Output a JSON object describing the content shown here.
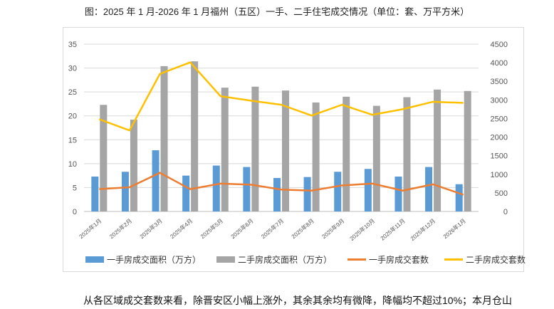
{
  "title": "图：2025 年 1 月-2026 年 1 月福州（五区）一手、二手住宅成交情况（单位：套、万平方米）",
  "footer_text": "从各区域成交套数来看，除晋安区小幅上涨外，其余其余均有微降，降幅均不超过10%；本月仓山",
  "colors": {
    "primary_area": "#5b9bd5",
    "secondary_area": "#a5a5a5",
    "primary_units": "#ed7d31",
    "secondary_units": "#ffc000"
  },
  "chart_data": {
    "type": "bar",
    "categories": [
      "2025年1月",
      "2025年2月",
      "2025年3月",
      "2025年4月",
      "2025年5月",
      "2025年6月",
      "2025年7月",
      "2025年8月",
      "2025年9月",
      "2025年10月",
      "2025年11月",
      "2025年12月",
      "2026年1月"
    ],
    "left_axis": {
      "min": 0,
      "max": 35,
      "ticks": [
        "0",
        "5",
        "10",
        "15",
        "20",
        "25",
        "30",
        "35"
      ]
    },
    "right_axis": {
      "min": 0,
      "max": 4500,
      "ticks": [
        "0",
        "500",
        "1000",
        "1500",
        "2000",
        "2500",
        "3000",
        "3500",
        "4000",
        "4500"
      ]
    },
    "grid": true,
    "legend_position": "bottom",
    "series": [
      {
        "name": "一手房成交面积（万方）",
        "type": "bar",
        "axis": "left",
        "values": [
          7.3,
          8.3,
          12.8,
          7.5,
          9.6,
          9.3,
          7.0,
          7.2,
          8.3,
          8.9,
          7.3,
          9.3,
          5.7
        ]
      },
      {
        "name": "二手房成交面积（万方）",
        "type": "bar",
        "axis": "left",
        "values": [
          22.3,
          19.2,
          30.4,
          31.4,
          25.9,
          26.1,
          25.3,
          22.8,
          24.0,
          22.1,
          23.9,
          25.5,
          25.2
        ]
      },
      {
        "name": "一手房成交套数",
        "type": "line",
        "axis": "right",
        "values": [
          600,
          650,
          1040,
          600,
          750,
          720,
          590,
          560,
          700,
          750,
          560,
          730,
          450
        ]
      },
      {
        "name": "二手房成交套数",
        "type": "line",
        "axis": "right",
        "values": [
          2480,
          2180,
          3700,
          4010,
          3100,
          2980,
          2870,
          2580,
          2870,
          2600,
          2750,
          2950,
          2920
        ]
      }
    ]
  }
}
